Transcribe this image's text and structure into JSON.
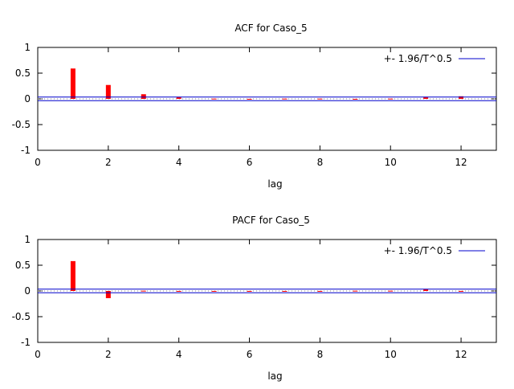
{
  "chart_data": [
    {
      "type": "bar",
      "title": "ACF for Caso_5",
      "xlabel": "lag",
      "ylabel": "",
      "xlim": [
        0,
        13
      ],
      "ylim": [
        -1,
        1
      ],
      "xticks": [
        "0",
        "2",
        "4",
        "6",
        "8",
        "10",
        "12"
      ],
      "yticks": [
        "1",
        "0.5",
        "0",
        "-0.5",
        "-1"
      ],
      "x": [
        1,
        2,
        3,
        4,
        5,
        6,
        7,
        8,
        9,
        10,
        11,
        12
      ],
      "values": [
        0.59,
        0.27,
        0.09,
        0.03,
        0.005,
        0.0,
        0.005,
        0.005,
        0.0,
        0.005,
        0.03,
        0.05
      ],
      "band": 0.035,
      "legend": "+- 1.96/T^0.5",
      "legend_position": "top-right",
      "bar_color": "#ff0000",
      "band_color": "#0000cc"
    },
    {
      "type": "bar",
      "title": "PACF for Caso_5",
      "xlabel": "lag",
      "ylabel": "",
      "xlim": [
        0,
        13
      ],
      "ylim": [
        -1,
        1
      ],
      "xticks": [
        "0",
        "2",
        "4",
        "6",
        "8",
        "10",
        "12"
      ],
      "yticks": [
        "1",
        "0.5",
        "0",
        "-0.5",
        "-1"
      ],
      "x": [
        1,
        2,
        3,
        4,
        5,
        6,
        7,
        8,
        9,
        10,
        11,
        12
      ],
      "values": [
        0.58,
        -0.14,
        0.005,
        0.0,
        -0.005,
        0.0,
        -0.005,
        0.0,
        0.005,
        0.005,
        0.03,
        -0.005
      ],
      "band": 0.035,
      "legend": "+- 1.96/T^0.5",
      "legend_position": "top-right",
      "bar_color": "#ff0000",
      "band_color": "#0000cc"
    }
  ]
}
